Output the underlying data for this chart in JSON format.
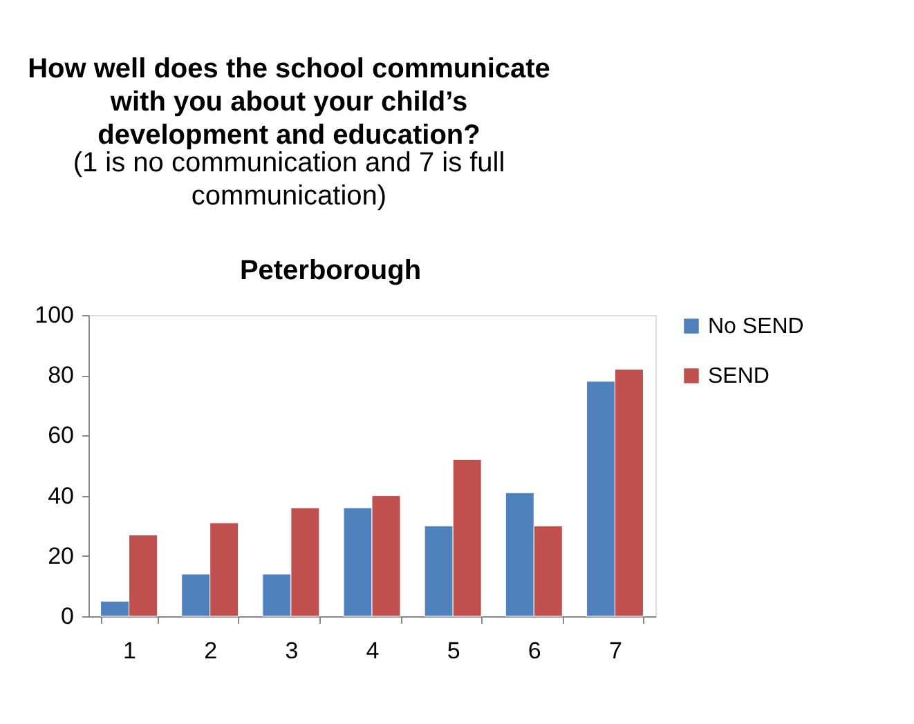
{
  "chart_data": {
    "type": "bar",
    "title": "How well does the school communicate with you about your child’s development and education?",
    "subtitle": "(1 is no communication and 7 is full communication)",
    "annotations": [
      "Peterborough"
    ],
    "categories": [
      "1",
      "2",
      "3",
      "4",
      "5",
      "6",
      "7"
    ],
    "series": [
      {
        "name": "No SEND",
        "color": "#4f81bd",
        "values": [
          5,
          14,
          14,
          36,
          30,
          41,
          78
        ]
      },
      {
        "name": "SEND",
        "color": "#c0504d",
        "values": [
          27,
          31,
          36,
          40,
          52,
          30,
          82
        ]
      }
    ],
    "ylim": [
      0,
      100
    ],
    "yticks": [
      0,
      20,
      40,
      60,
      80,
      100
    ],
    "grid": false,
    "legend": "right"
  }
}
